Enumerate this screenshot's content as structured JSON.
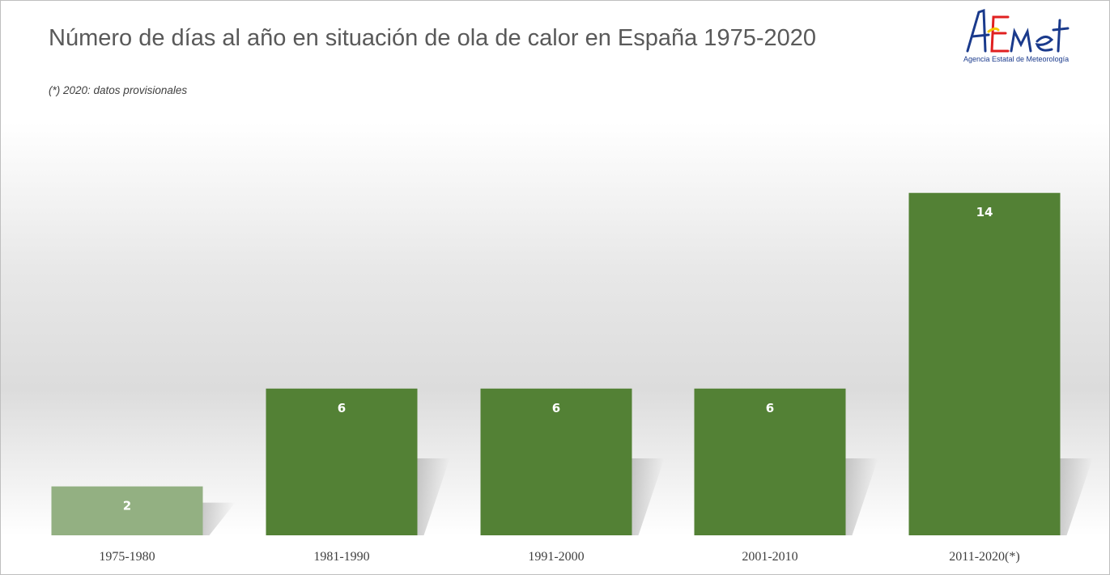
{
  "title": "Número de días al año en situación de ola de calor en España 1975-2020",
  "subtitle": "(*) 2020: datos provisionales",
  "logo": {
    "wordmark": "AEMet",
    "tagline": "Agencia Estatal de Meteorología"
  },
  "colors": {
    "bar": "#538135",
    "bar_first": "#93b082",
    "label": "#ffffff"
  },
  "chart_data": {
    "type": "bar",
    "title": "Número de días al año en situación de ola de calor en España 1975-2020",
    "subtitle": "(*) 2020: datos provisionales",
    "categories": [
      "1975-1980",
      "1981-1990",
      "1991-2000",
      "2001-2010",
      "2011-2020(*)"
    ],
    "values": [
      2,
      6,
      6,
      6,
      14
    ],
    "xlabel": "",
    "ylabel": "",
    "ylim": [
      0,
      14
    ],
    "grid": false,
    "legend": "none",
    "data_labels": "inside-top"
  }
}
